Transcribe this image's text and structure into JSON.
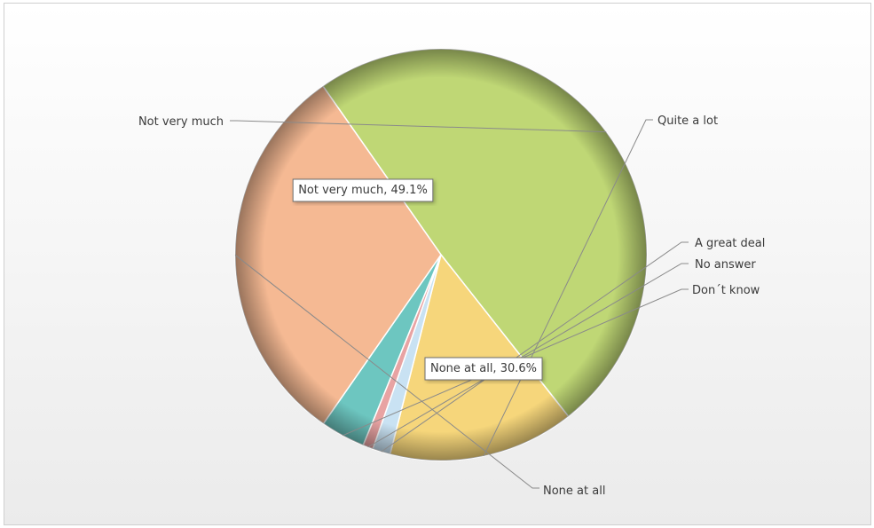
{
  "chart_data": {
    "type": "pie",
    "categories": [
      "Not very much",
      "Quite a lot",
      "A great deal",
      "No answer",
      "Don´t know",
      "None at all"
    ],
    "values": [
      49.1,
      14.6,
      1.4,
      0.8,
      3.5,
      30.6
    ],
    "colors": [
      "#bfd775",
      "#f6d67b",
      "#c9e2f3",
      "#e8a3a3",
      "#6dc6c0",
      "#f5b993"
    ],
    "data_labels": [
      {
        "category": "Not very much",
        "text": "Not very much, 49.1%"
      },
      {
        "category": "None at all",
        "text": "None at all, 30.6%"
      }
    ],
    "start_angle_deg": -125,
    "legend": "none"
  }
}
